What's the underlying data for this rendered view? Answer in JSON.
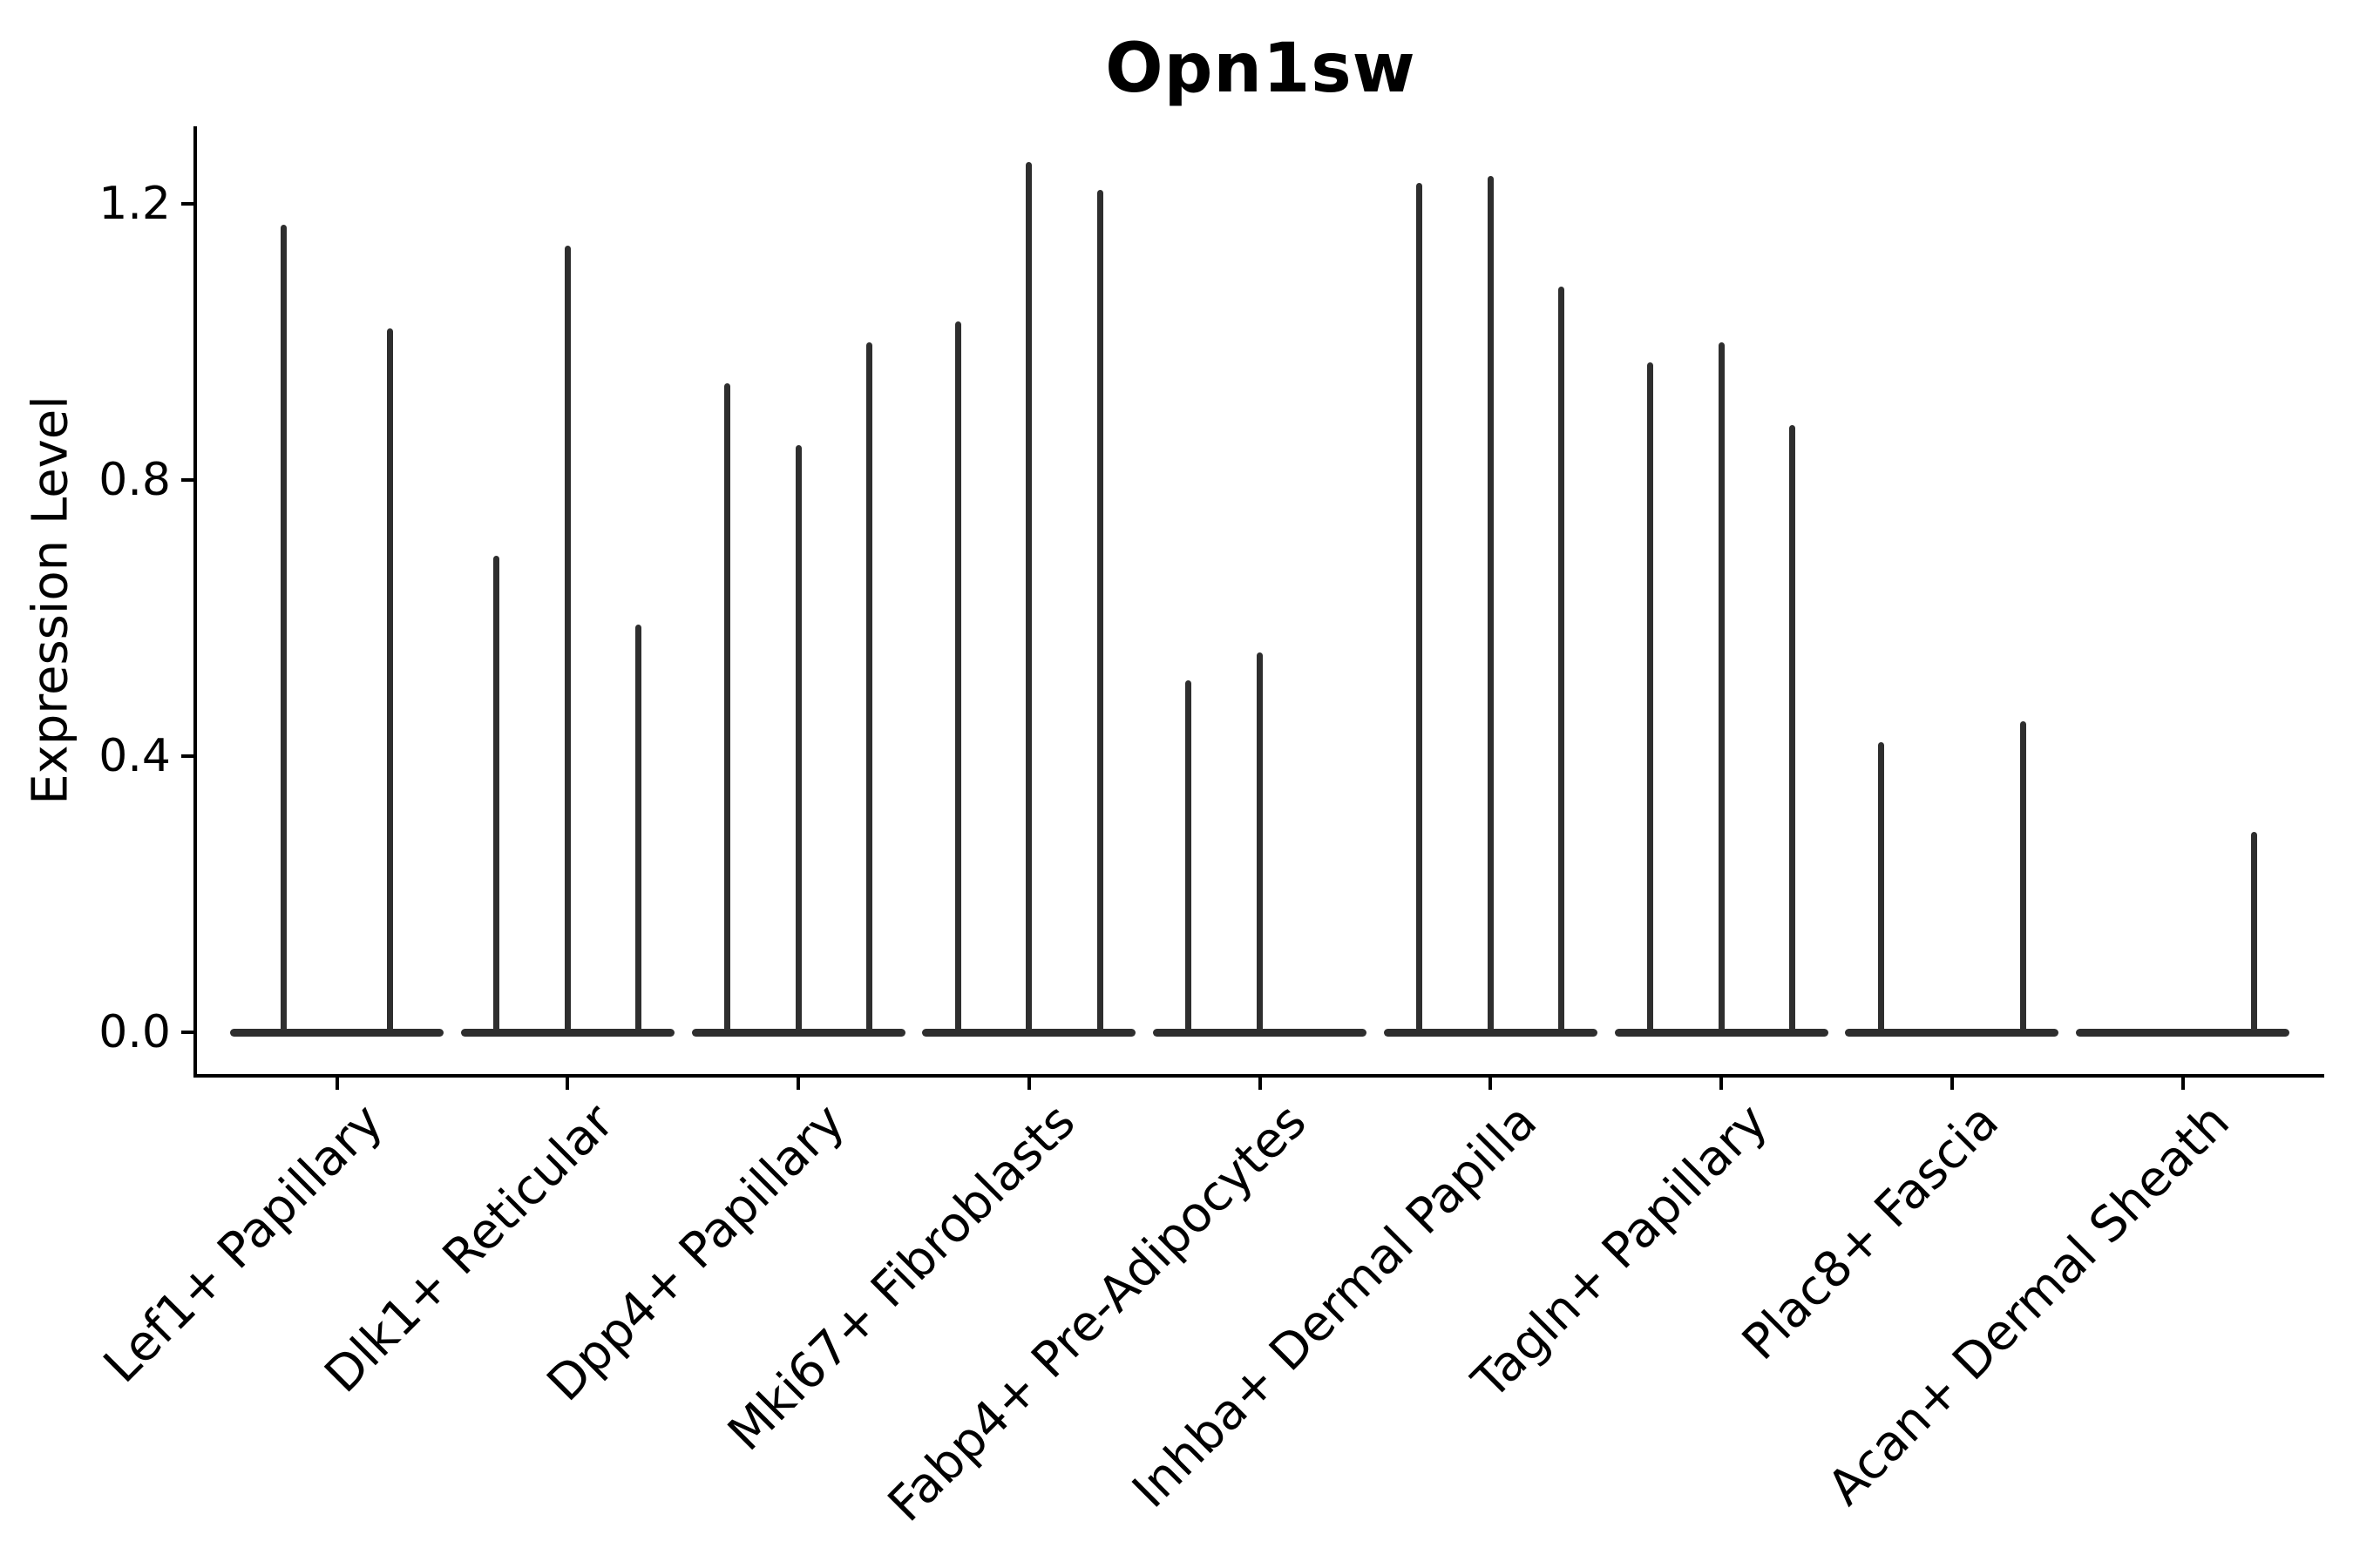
{
  "chart_data": {
    "type": "violin",
    "title": "Opn1sw",
    "ylabel": "Expression Level",
    "xlabel": "",
    "yticks": [
      0.0,
      0.4,
      0.8,
      1.2
    ],
    "ylim": [
      -0.06,
      1.31
    ],
    "grid": false,
    "legend": "none",
    "style": "thin collapsed violins at zero with narrow density spikes; only left and bottom spines; x labels rotated 45 degrees",
    "colors": {
      "violin": "#2e2e2e",
      "axis": "#000000",
      "background": "#ffffff",
      "text": "#000000"
    },
    "categories": [
      {
        "label": "Lef1+ Papillary",
        "n_groups": 2,
        "spikes": [
          {
            "group": 0,
            "max": 1.17
          },
          {
            "group": 1,
            "max": 1.02
          }
        ]
      },
      {
        "label": "Dlk1+ Reticular",
        "n_groups": 3,
        "spikes": [
          {
            "group": 0,
            "max": 0.69
          },
          {
            "group": 1,
            "max": 1.14
          },
          {
            "group": 2,
            "max": 0.59
          }
        ]
      },
      {
        "label": "Dpp4+ Papillary",
        "n_groups": 3,
        "spikes": [
          {
            "group": 0,
            "max": 0.94
          },
          {
            "group": 1,
            "max": 0.85
          },
          {
            "group": 2,
            "max": 1.0
          }
        ]
      },
      {
        "label": "Mki67+ Fibroblasts",
        "n_groups": 3,
        "spikes": [
          {
            "group": 0,
            "max": 1.03
          },
          {
            "group": 1,
            "max": 1.26
          },
          {
            "group": 2,
            "max": 1.22
          }
        ]
      },
      {
        "label": "Fabp4+ Pre-Adipocytes",
        "n_groups": 3,
        "spikes": [
          {
            "group": 0,
            "max": 0.51
          },
          {
            "group": 1,
            "max": 0.55
          }
        ]
      },
      {
        "label": "Inhba+ Dermal Papilla",
        "n_groups": 3,
        "spikes": [
          {
            "group": 0,
            "max": 1.23
          },
          {
            "group": 1,
            "max": 1.24
          },
          {
            "group": 2,
            "max": 1.08
          }
        ]
      },
      {
        "label": "Tagln+ Papillary",
        "n_groups": 3,
        "spikes": [
          {
            "group": 0,
            "max": 0.97
          },
          {
            "group": 1,
            "max": 1.0
          },
          {
            "group": 2,
            "max": 0.88
          }
        ]
      },
      {
        "label": "Plac8+ Fascia",
        "n_groups": 3,
        "spikes": [
          {
            "group": 0,
            "max": 0.42
          },
          {
            "group": 2,
            "max": 0.45
          }
        ]
      },
      {
        "label": "Acan+ Dermal Sheath",
        "n_groups": 3,
        "spikes": [
          {
            "group": 2,
            "max": 0.29
          }
        ]
      }
    ]
  }
}
